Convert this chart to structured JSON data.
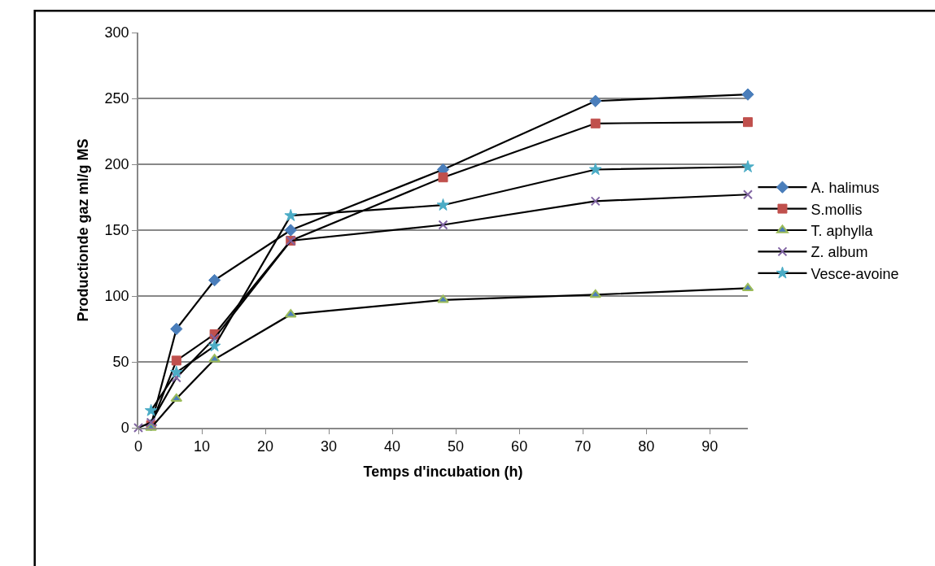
{
  "chart_data": {
    "type": "line",
    "xlabel": "Temps d'incubation (h)",
    "ylabel": "Productionde gaz ml/g MS",
    "xlim": [
      0,
      96
    ],
    "xticks": [
      0,
      10,
      20,
      30,
      40,
      50,
      60,
      70,
      80,
      90
    ],
    "ylim": [
      0,
      300
    ],
    "yticks": [
      0,
      50,
      100,
      150,
      200,
      250,
      300
    ],
    "grid": "y",
    "legend": "right",
    "series": [
      {
        "name": "A. halimus",
        "color": "#4a7ebb",
        "marker": "diamond",
        "x": [
          2,
          6,
          12,
          24,
          48,
          72,
          96
        ],
        "values": [
          2,
          75,
          112,
          150,
          196,
          248,
          253
        ]
      },
      {
        "name": "S.mollis",
        "color": "#c0504d",
        "marker": "square",
        "x": [
          2,
          6,
          12,
          24,
          48,
          72,
          96
        ],
        "values": [
          2,
          51,
          71,
          142,
          190,
          231,
          232
        ]
      },
      {
        "name": "T. aphylla",
        "color": "#9bbb59",
        "marker": "triangle",
        "x": [
          2,
          6,
          12,
          24,
          48,
          72,
          96
        ],
        "values": [
          0,
          22,
          52,
          86,
          97,
          101,
          106
        ]
      },
      {
        "name": "Z. album",
        "color": "#8064a2",
        "marker": "cross",
        "x": [
          0,
          2,
          6,
          12,
          24,
          48,
          72,
          96
        ],
        "values": [
          0,
          4,
          38,
          68,
          142,
          154,
          172,
          177
        ]
      },
      {
        "name": "Vesce-avoine",
        "color": "#4bacc6",
        "marker": "star",
        "x": [
          2,
          6,
          12,
          24,
          48,
          72,
          96
        ],
        "values": [
          13,
          42,
          62,
          161,
          169,
          196,
          198
        ]
      }
    ]
  }
}
